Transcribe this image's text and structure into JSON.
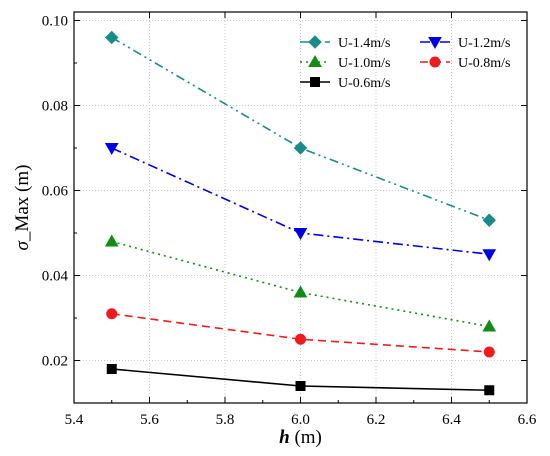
{
  "chart_data": {
    "type": "line",
    "xlabel": {
      "var": "h",
      "unit": " (m)"
    },
    "ylabel": {
      "var": "σ",
      "rest": "_Max (m)"
    },
    "xlim": [
      5.4,
      6.6
    ],
    "ylim": [
      0.01,
      0.102
    ],
    "x_ticks": [
      5.4,
      5.6,
      5.8,
      6.0,
      6.2,
      6.4,
      6.6
    ],
    "y_ticks": [
      0.02,
      0.04,
      0.06,
      0.08,
      0.1
    ],
    "x_tick_labels": [
      "5.4",
      "5.6",
      "5.8",
      "6.0",
      "6.2",
      "6.4",
      "6.6"
    ],
    "y_tick_labels": [
      "0.02",
      "0.04",
      "0.06",
      "0.08",
      "0.10"
    ],
    "grid": true,
    "legend_position": "top-right",
    "x": [
      5.5,
      6.0,
      6.5
    ],
    "series": [
      {
        "name": "U-1.4m/s",
        "values": [
          0.096,
          0.07,
          0.053
        ],
        "color": "#1a8a8a",
        "marker": "diamond",
        "dash": "9,4,2,4,2,4"
      },
      {
        "name": "U-1.2m/s",
        "values": [
          0.07,
          0.05,
          0.045
        ],
        "color": "#0000e0",
        "marker": "triangle-down",
        "dash": "10,4,2,4"
      },
      {
        "name": "U-1.0m/s",
        "values": [
          0.048,
          0.036,
          0.028
        ],
        "color": "#168a16",
        "marker": "triangle-up",
        "dash": "2,4"
      },
      {
        "name": "U-0.8m/s",
        "values": [
          0.031,
          0.025,
          0.022
        ],
        "color": "#ee1c1c",
        "marker": "circle",
        "dash": "8,5"
      },
      {
        "name": "U-0.6m/s",
        "values": [
          0.018,
          0.014,
          0.013
        ],
        "color": "#000000",
        "marker": "square",
        "dash": ""
      }
    ]
  }
}
